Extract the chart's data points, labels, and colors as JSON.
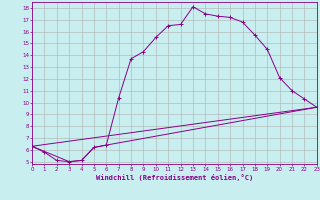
{
  "xlabel": "Windchill (Refroidissement éolien,°C)",
  "ylabel": "",
  "background_color": "#c8eef0",
  "grid_color": "#b0b0b0",
  "line_color": "#880088",
  "xlim": [
    0,
    23
  ],
  "ylim": [
    4.8,
    18.5
  ],
  "xticks": [
    0,
    1,
    2,
    3,
    4,
    5,
    6,
    7,
    8,
    9,
    10,
    11,
    12,
    13,
    14,
    15,
    16,
    17,
    18,
    19,
    20,
    21,
    22,
    23
  ],
  "yticks": [
    5,
    6,
    7,
    8,
    9,
    10,
    11,
    12,
    13,
    14,
    15,
    16,
    17,
    18
  ],
  "line1_x": [
    0,
    1,
    2,
    3,
    4,
    5,
    6,
    7,
    8,
    9,
    10,
    11,
    12,
    13,
    14,
    15,
    16,
    17,
    18,
    19,
    20,
    21,
    22,
    23
  ],
  "line1_y": [
    6.3,
    5.8,
    5.1,
    5.0,
    5.1,
    6.2,
    6.4,
    10.4,
    13.7,
    14.3,
    15.5,
    16.5,
    16.6,
    18.1,
    17.5,
    17.3,
    17.2,
    16.8,
    15.7,
    14.5,
    12.1,
    11.0,
    10.3,
    9.6
  ],
  "line2_x": [
    0,
    3,
    4,
    5,
    6,
    23
  ],
  "line2_y": [
    6.3,
    5.0,
    5.1,
    6.2,
    6.4,
    9.6
  ],
  "line3_x": [
    0,
    23
  ],
  "line3_y": [
    6.3,
    9.6
  ]
}
